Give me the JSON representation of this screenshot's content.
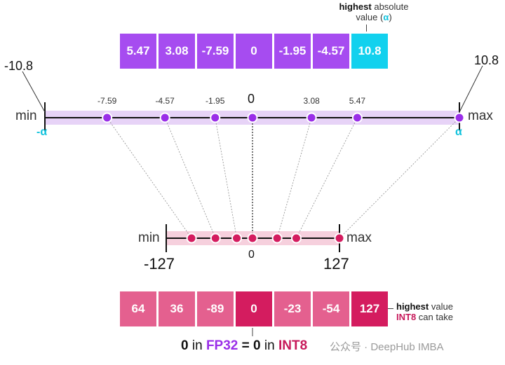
{
  "fp32": {
    "values": [
      "5.47",
      "3.08",
      "-7.59",
      "0",
      "-1.95",
      "-4.57",
      "10.8"
    ],
    "highest_note": {
      "bold": "highest",
      "rest": "absolute",
      "line2": "value (",
      "alpha": "α",
      "close": ")"
    }
  },
  "fp32_axis": {
    "min_label": "min",
    "max_label": "max",
    "left_value": "-10.8",
    "right_value": "10.8",
    "neg_alpha": "-α",
    "pos_alpha": "α",
    "zero_label": "0",
    "points": [
      {
        "label": "-7.59",
        "value": -7.59
      },
      {
        "label": "-4.57",
        "value": -4.57
      },
      {
        "label": "-1.95",
        "value": -1.95
      },
      {
        "label": "0",
        "value": 0
      },
      {
        "label": "3.08",
        "value": 3.08
      },
      {
        "label": "5.47",
        "value": 5.47
      },
      {
        "label": "10.8",
        "value": 10.8
      }
    ]
  },
  "int8_axis": {
    "min_label": "min",
    "max_label": "max",
    "left_value": "-127",
    "right_value": "127",
    "zero_label": "0",
    "points": [
      -89,
      -54,
      -23,
      0,
      36,
      64,
      127
    ]
  },
  "int8": {
    "values": [
      "64",
      "36",
      "-89",
      "0",
      "-23",
      "-54",
      "127"
    ],
    "highest_note": {
      "bold": "highest",
      "rest": "value",
      "line2_colored": "INT8",
      "line2_rest": "can take"
    }
  },
  "equation": {
    "a": "0",
    "in1": "in",
    "fmt1": "FP32",
    "eq": "=",
    "b": "0",
    "in2": "in",
    "fmt2": "INT8"
  },
  "watermark": "公众号 · DeepHub IMBA",
  "colors": {
    "fp32": "#a64cf0",
    "fp32_highlight": "#12d1ee",
    "int8": "#e4608f",
    "int8_strong": "#d41c5f",
    "axis_band_fp": "#e7d3f7",
    "axis_band_int": "#f6d0dd"
  }
}
